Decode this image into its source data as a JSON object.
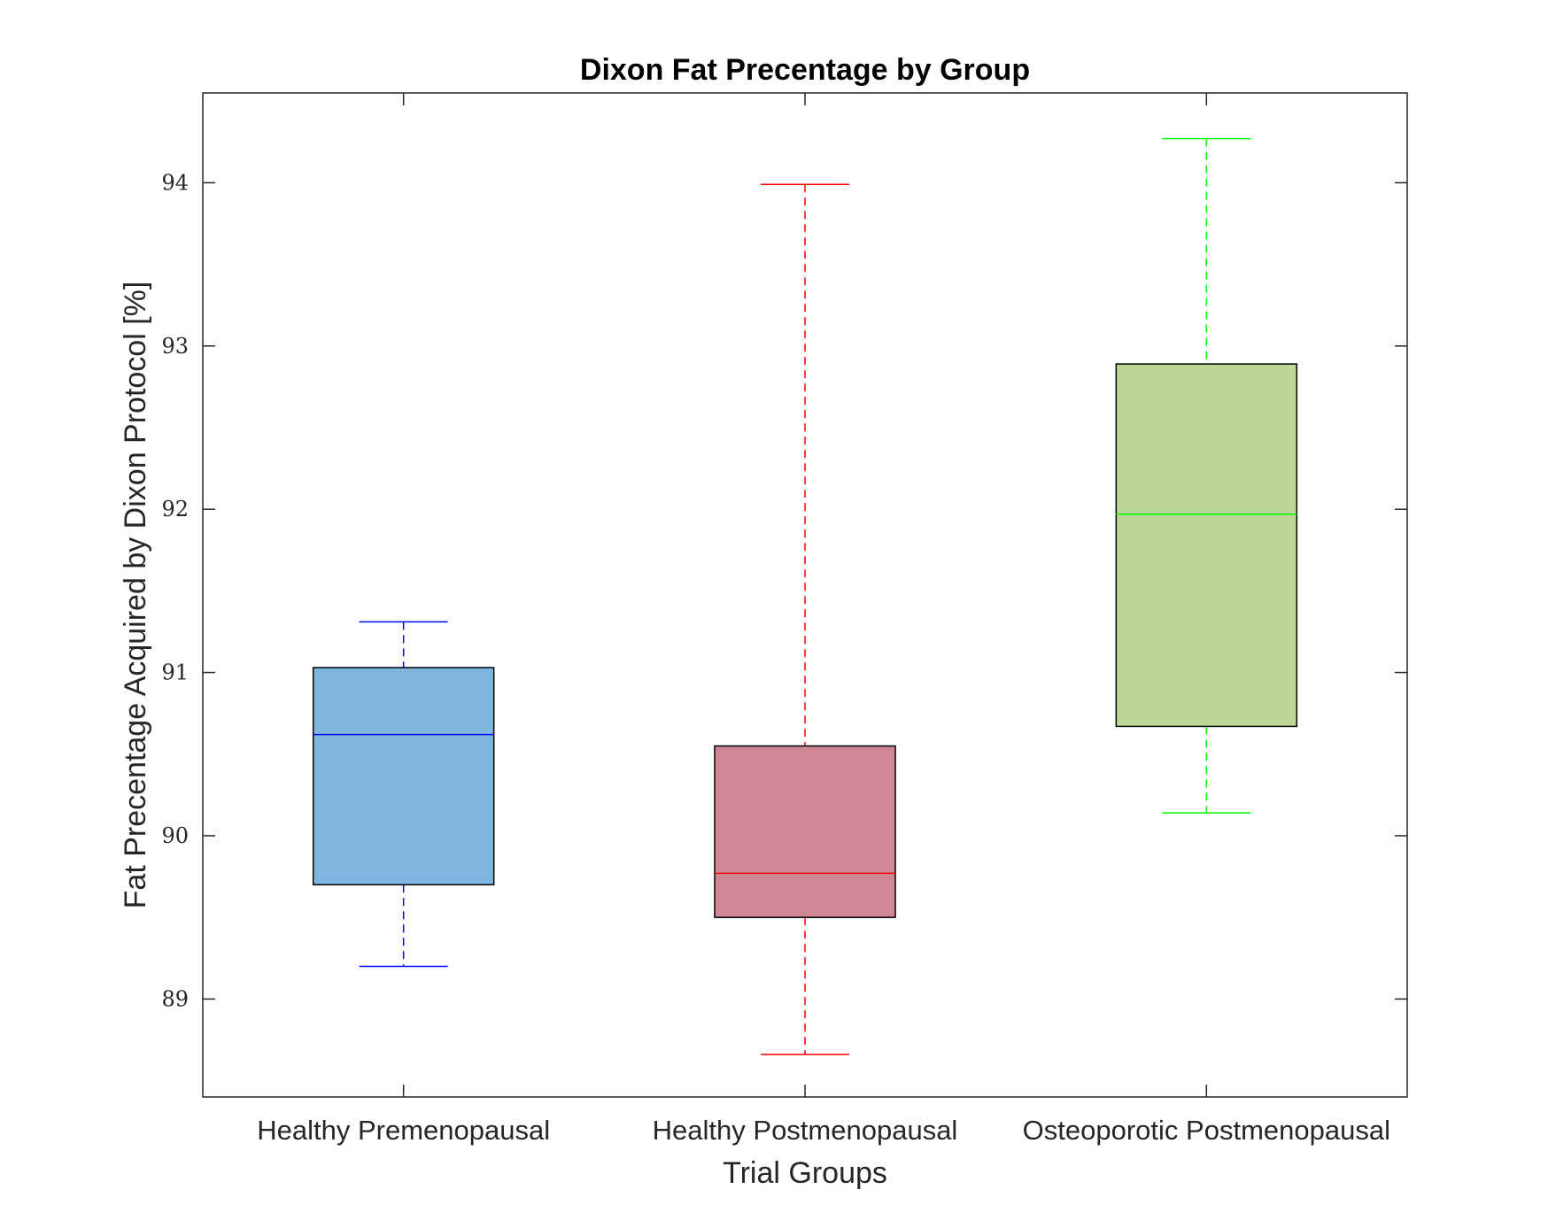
{
  "chart_data": {
    "type": "box",
    "title": "Dixon Fat Precentage by Group",
    "xlabel": "Trial Groups",
    "ylabel": "Fat Precentage Acquired by Dixon Protocol [%]",
    "ylim": [
      88.4,
      94.55
    ],
    "yticks": [
      89,
      90,
      91,
      92,
      93,
      94
    ],
    "ytick_labels": [
      "89",
      "90",
      "91",
      "92",
      "93",
      "94"
    ],
    "grid": false,
    "categories": [
      "Healthy Premenopausal",
      "Healthy Postmenopausal",
      "Osteoporotic Postmenopausal"
    ],
    "boxes": [
      {
        "name": "Healthy Premenopausal",
        "min": 89.2,
        "q1": 89.7,
        "median": 90.62,
        "q3": 91.03,
        "max": 91.31,
        "fill": "#7fb6dd",
        "line": "#0000ff"
      },
      {
        "name": "Healthy Postmenopausal",
        "min": 88.66,
        "q1": 89.5,
        "median": 89.77,
        "q3": 90.55,
        "max": 93.99,
        "fill": "#d08795",
        "line": "#ff0000"
      },
      {
        "name": "Osteoporotic Postmenopausal",
        "min": 90.14,
        "q1": 90.67,
        "median": 91.97,
        "q3": 92.89,
        "max": 94.27,
        "fill": "#bcd795",
        "line": "#00ff00"
      }
    ]
  }
}
